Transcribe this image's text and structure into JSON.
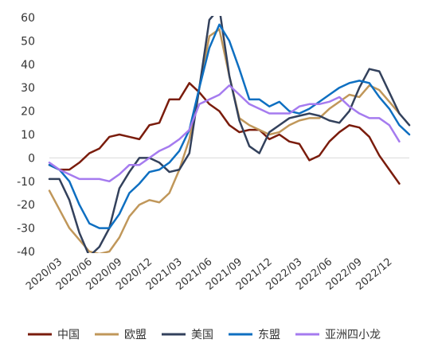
{
  "chart_data": {
    "type": "line",
    "title": "",
    "xlabel": "",
    "ylabel": "",
    "ylim": [
      -40,
      60
    ],
    "yticks": [
      60,
      50,
      40,
      30,
      20,
      10,
      0,
      -10,
      -20,
      -30,
      -40
    ],
    "xtick_labels": [
      "2020/03",
      "2020/06",
      "2020/09",
      "2020/12",
      "2021/03",
      "2021/06",
      "2021/09",
      "2021/12",
      "2022/03",
      "2022/06",
      "2022/09",
      "2022/12"
    ],
    "legend_position": "bottom",
    "grid": false,
    "x": [
      "2020/02",
      "2020/03",
      "2020/04",
      "2020/05",
      "2020/06",
      "2020/07",
      "2020/08",
      "2020/09",
      "2020/10",
      "2020/11",
      "2020/12",
      "2021/01",
      "2021/02",
      "2021/03",
      "2021/04",
      "2021/05",
      "2021/06",
      "2021/07",
      "2021/08",
      "2021/09",
      "2021/10",
      "2021/11",
      "2021/12",
      "2022/01",
      "2022/02",
      "2022/03",
      "2022/04",
      "2022/05",
      "2022/06",
      "2022/07",
      "2022/08",
      "2022/09",
      "2022/10",
      "2022/11",
      "2022/12",
      "2023/01",
      "2023/02"
    ],
    "series": [
      {
        "name": "中国",
        "color": "#7a1c0c",
        "values": [
          -3,
          -5,
          -5,
          -2,
          2,
          4,
          9,
          10,
          9,
          8,
          14,
          15,
          25,
          25,
          32,
          28,
          23,
          20,
          14,
          11,
          12,
          12,
          8,
          10,
          7,
          6,
          -1,
          1,
          7,
          11,
          14,
          13,
          9,
          1,
          -5,
          -11,
          null
        ]
      },
      {
        "name": "欧盟",
        "color": "#c0975a",
        "values": [
          -14,
          -22,
          -30,
          -35,
          -40,
          -41,
          -40,
          -34,
          -25,
          -20,
          -18,
          -19,
          -15,
          -5,
          8,
          30,
          52,
          55,
          35,
          17,
          14,
          12,
          10,
          11,
          14,
          16,
          17,
          17,
          21,
          24,
          27,
          26,
          31,
          29,
          24,
          19,
          null
        ]
      },
      {
        "name": "美国",
        "color": "#33415c",
        "values": [
          -9,
          -9,
          -18,
          -32,
          -42,
          -38,
          -30,
          -13,
          -6,
          0,
          0,
          -2,
          -6,
          -5,
          2,
          30,
          59,
          64,
          35,
          16,
          5,
          2,
          11,
          14,
          17,
          18,
          19,
          18,
          16,
          15,
          20,
          30,
          38,
          37,
          28,
          19,
          14
        ]
      },
      {
        "name": "东盟",
        "color": "#0e6fc1",
        "values": [
          -3,
          -5,
          -10,
          -20,
          -28,
          -30,
          -30,
          -24,
          -15,
          -11,
          -6,
          -5,
          -2,
          3,
          12,
          30,
          47,
          57,
          50,
          38,
          25,
          25,
          22,
          24,
          20,
          19,
          21,
          24,
          27,
          30,
          32,
          33,
          32,
          26,
          21,
          14,
          10
        ]
      },
      {
        "name": "亚洲四小龙",
        "color": "#a57bef",
        "values": [
          -2,
          -5,
          -7,
          -9,
          -9,
          -9,
          -10,
          -7,
          -3,
          -3,
          0,
          3,
          5,
          8,
          12,
          23,
          25,
          27,
          31,
          27,
          23,
          21,
          19,
          19,
          19,
          22,
          23,
          23,
          24,
          26,
          22,
          19,
          17,
          17,
          14,
          7,
          null
        ]
      }
    ]
  }
}
